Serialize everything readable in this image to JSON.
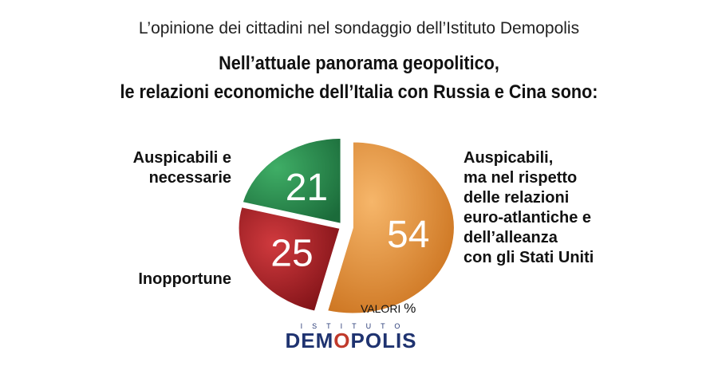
{
  "subtitle": "L’opinione dei cittadini nel sondaggio dell’Istituto Demopolis",
  "title_line1": "Nell’attuale panorama geopolitico,",
  "title_line2": "le relazioni economiche dell’Italia con Russia e Cina sono:",
  "unit_label": "VALORI",
  "unit_symbol": "%",
  "logo": {
    "top": "ISTITUTO",
    "main_left": "DEM",
    "main_o": "O",
    "main_right": "POLIS"
  },
  "chart_data": {
    "type": "pie",
    "unit": "%",
    "slices": [
      {
        "label": "Auspicabili, ma nel rispetto delle relazioni euro-atlantiche e dell’alleanza con gli Stati Uniti",
        "value": 54,
        "color": "#e08a2e"
      },
      {
        "label": "Inopportune",
        "value": 25,
        "color": "#a31c22"
      },
      {
        "label": "Auspicabili e necessarie",
        "value": 21,
        "color": "#2a8a4e"
      }
    ]
  },
  "labels": {
    "green": [
      "Auspicabili e",
      "necessarie"
    ],
    "red": [
      "Inopportune"
    ],
    "orange": [
      "Auspicabili,",
      "ma nel rispetto",
      "delle relazioni",
      "euro-atlantiche e",
      "dell’alleanza",
      "con gli Stati Uniti"
    ]
  }
}
